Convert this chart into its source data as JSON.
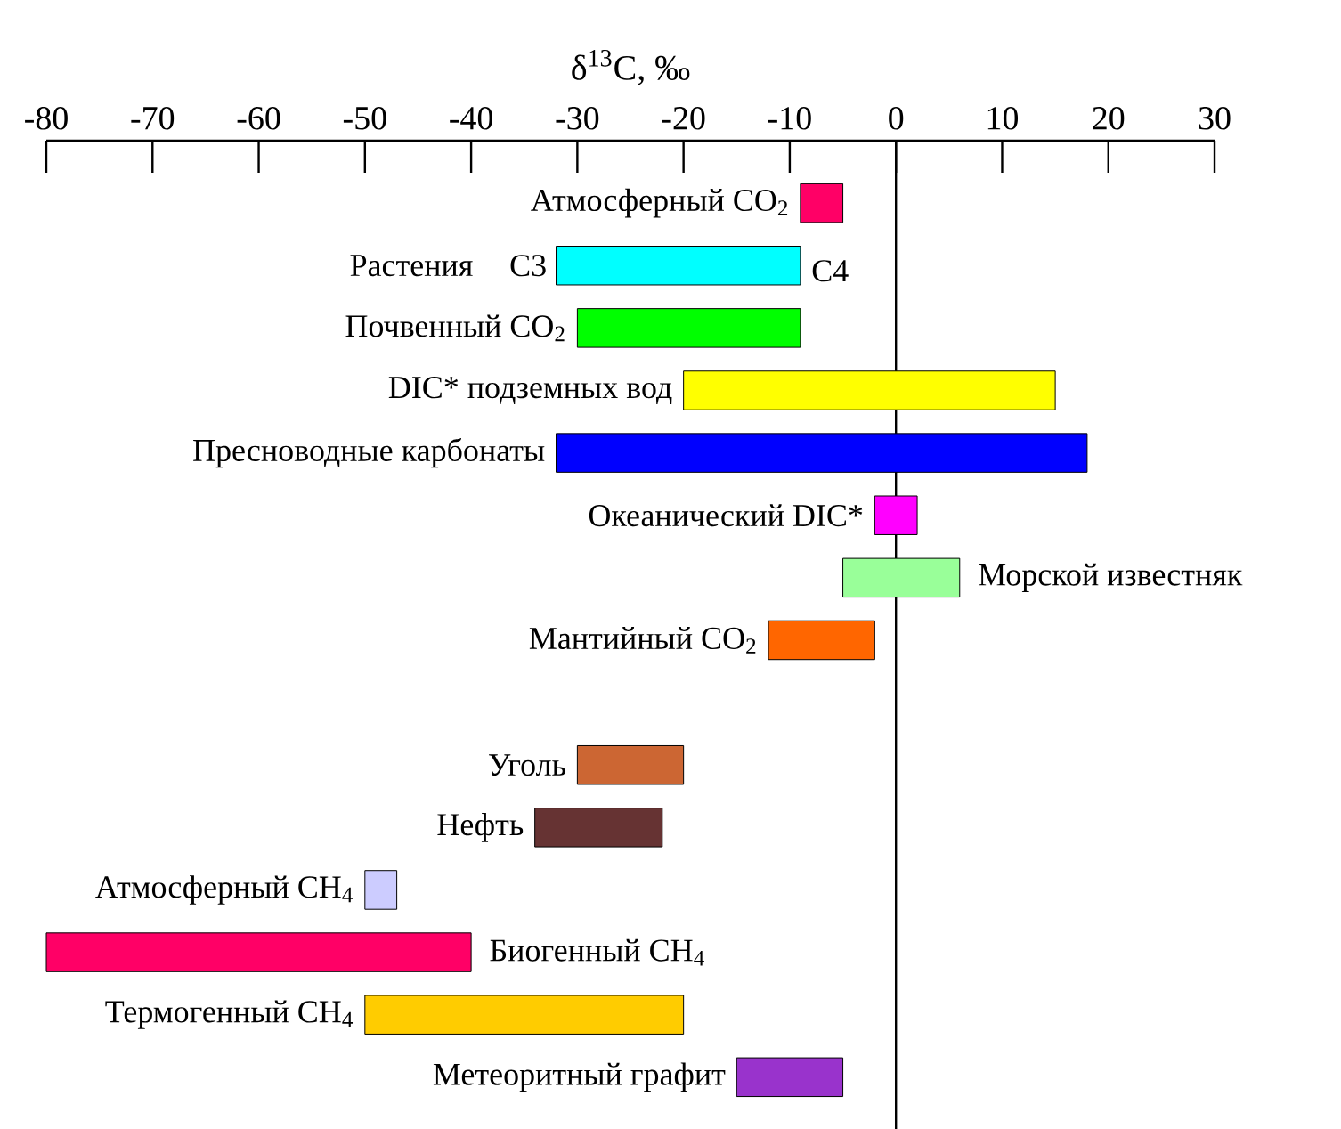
{
  "chart_data": {
    "type": "bar",
    "orientation": "horizontal",
    "xlabel": "δ$^{13}$C, ‰",
    "categories": [
      "Атмосферный CO$_{2}$",
      "Растения",
      "Почвенный CO$_{2}$",
      "DIC* подземных вод",
      "Пресноводные карбонаты",
      "Океанический DIC*",
      "Морской известняк",
      "Мантийный CO$_{2}$",
      null,
      "Уголь",
      "Нефть",
      "Атмосферный CH$_{4}$",
      "Биогенный CH$_{4}$",
      "Термогенный CH$_{4}$",
      "Метеоритный графит"
    ],
    "base": [
      -9,
      -32,
      -30,
      -20,
      -32,
      -2,
      -5,
      -12,
      null,
      -30,
      -34,
      -50,
      -80,
      -50,
      -15
    ],
    "values": [
      4,
      23,
      21,
      35,
      50,
      4,
      11,
      10,
      null,
      10,
      12,
      3,
      40,
      30,
      10
    ],
    "colors": [
      "#ff0066",
      "#00ffff",
      "#00ff00",
      "#ffff00",
      "#0000ff",
      "#ff00ff",
      "#99ff99",
      "#ff6600",
      null,
      "#cc6633",
      "#663333",
      "#ccccff",
      "#ff0066",
      "#ffcc00",
      "#9933cc"
    ],
    "xlim": [
      -80,
      30
    ],
    "xticks": [
      -80,
      -70,
      -60,
      -50,
      -40,
      -30,
      -20,
      -10,
      0,
      10,
      20,
      30
    ],
    "ref_lines": [
      {
        "axis": "x",
        "value": 0
      }
    ],
    "annotations": [
      {
        "text": "C3",
        "x": -32,
        "y": "Растения"
      },
      {
        "text": "C4",
        "x": -9,
        "y": "Растения"
      }
    ]
  }
}
